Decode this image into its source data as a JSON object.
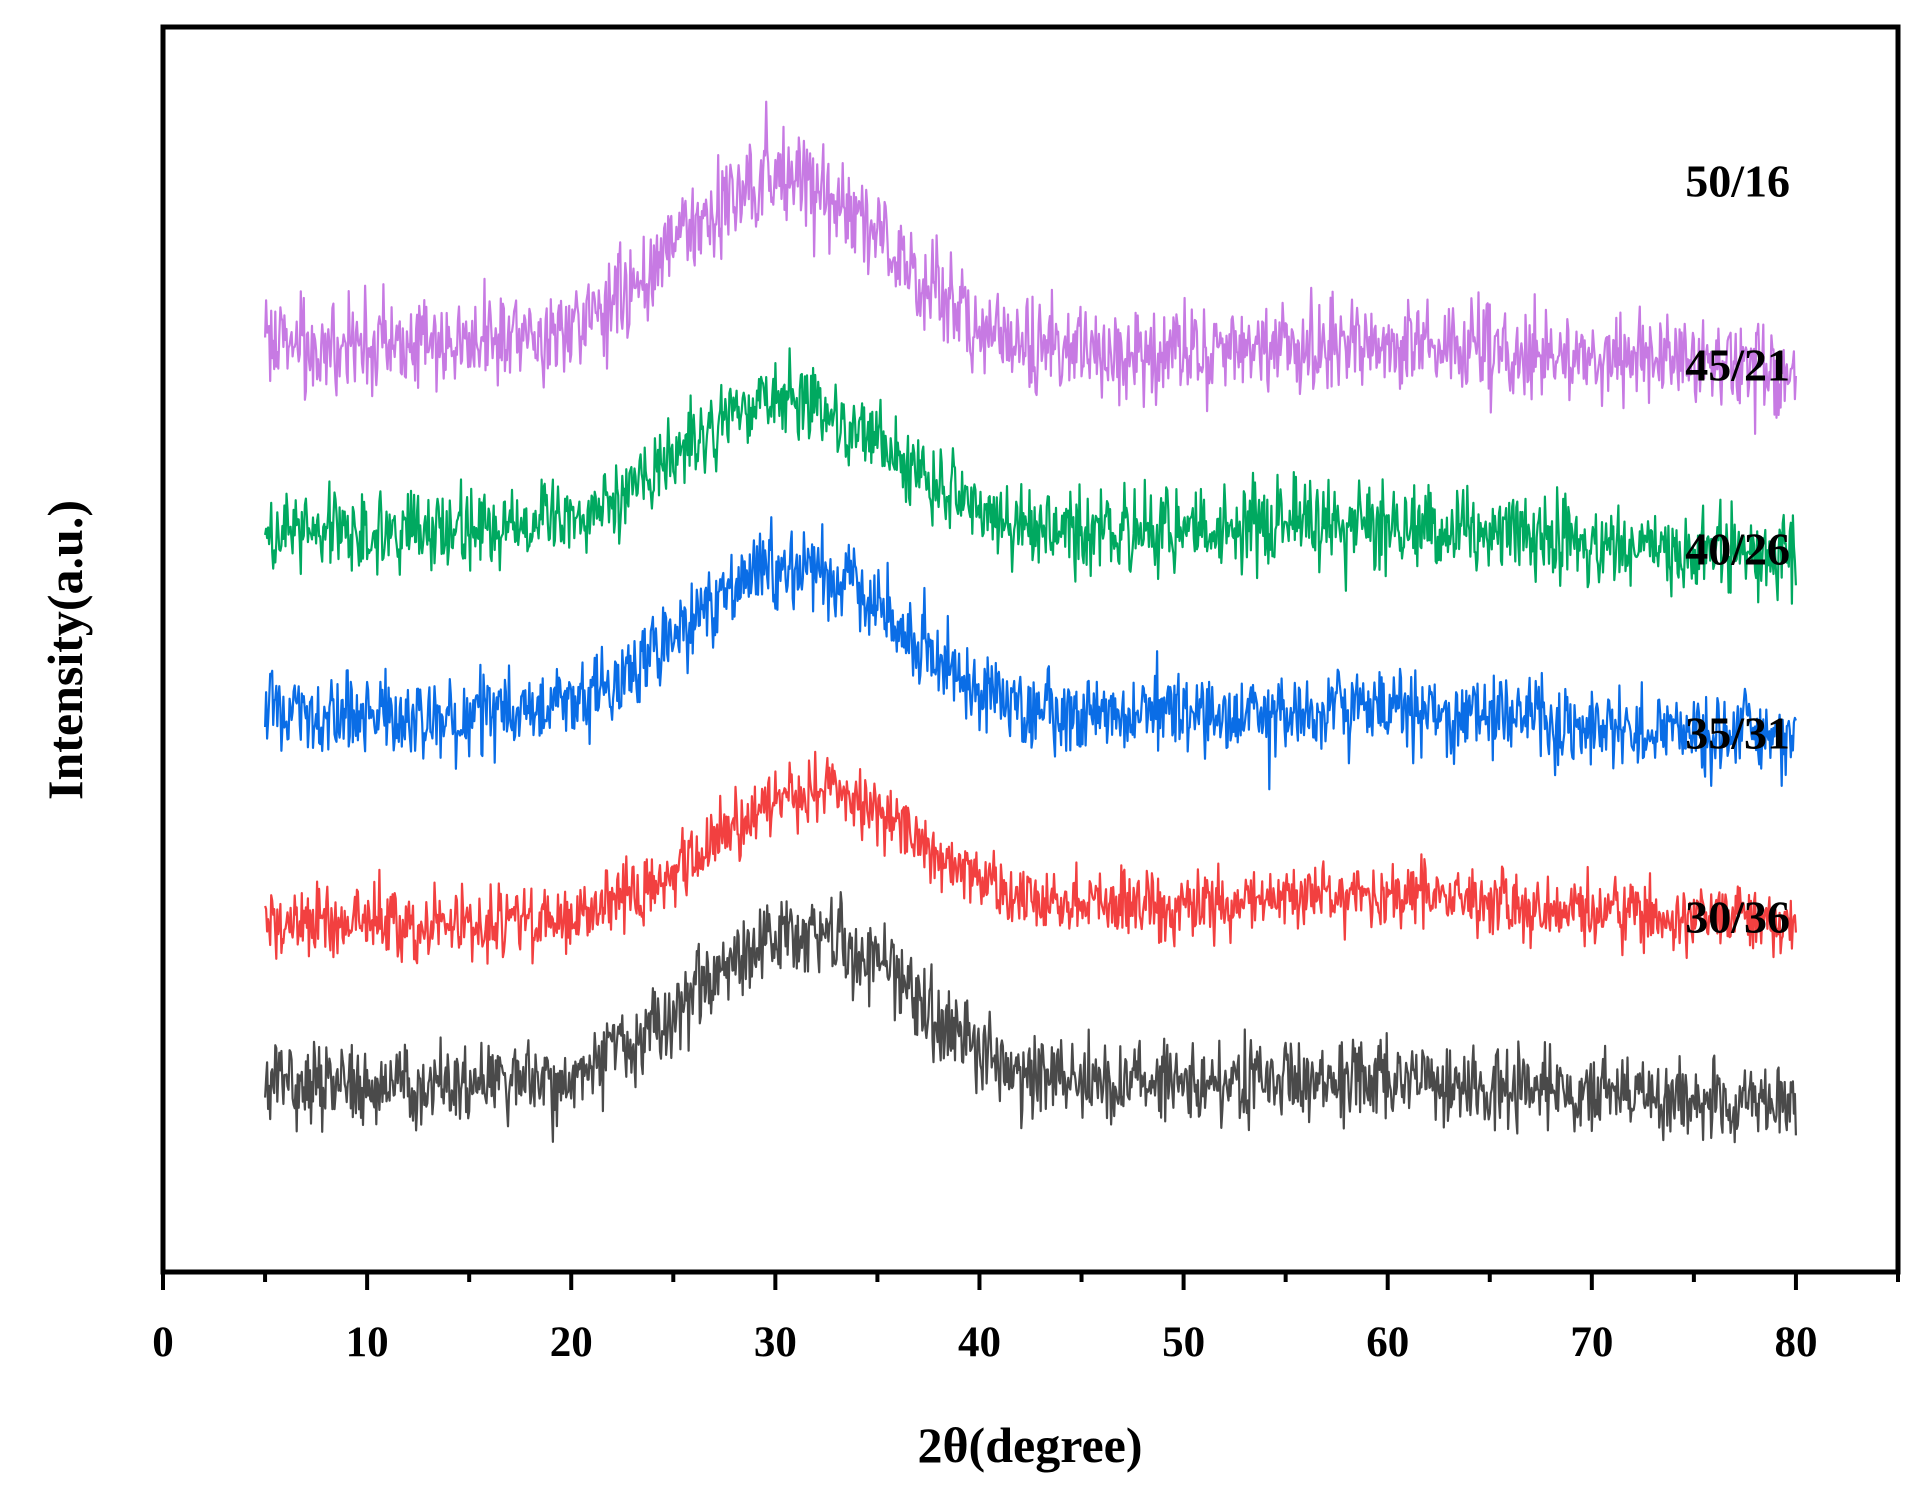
{
  "chart_data": {
    "type": "line",
    "title": "",
    "xlabel": "2θ(degree)",
    "ylabel": "Intensity(a.u.)",
    "xlim": [
      0,
      85
    ],
    "x_ticks": [
      "0",
      "10",
      "20",
      "30",
      "40",
      "50",
      "60",
      "70",
      "80"
    ],
    "x_range": [
      5,
      80
    ],
    "y_ticks_shown": false,
    "grid": false,
    "legend": "none",
    "series": [
      {
        "name": "50/16",
        "color": "#c77ae3",
        "offset": 4,
        "peak_center": 30.5,
        "peak_height": 0.95,
        "peak_width": 5.2,
        "baseline_start": 0.15,
        "baseline_end": 0.0,
        "hump_center": 62,
        "hump_height": 0.12,
        "hump_width": 9,
        "noise": 0.27,
        "seed": 11
      },
      {
        "name": "45/21",
        "color": "#00a960",
        "offset": 3,
        "peak_center": 30.5,
        "peak_height": 0.75,
        "peak_width": 5.2,
        "baseline_start": 0.15,
        "baseline_end": 0.0,
        "hump_center": 58,
        "hump_height": 0.12,
        "hump_width": 10,
        "noise": 0.24,
        "seed": 23
      },
      {
        "name": "40/26",
        "color": "#0a6de6",
        "offset": 2,
        "peak_center": 31.0,
        "peak_height": 0.85,
        "peak_width": 5.2,
        "baseline_start": 0.15,
        "baseline_end": 0.0,
        "hump_center": 58,
        "hump_height": 0.12,
        "hump_width": 10,
        "noise": 0.24,
        "seed": 37
      },
      {
        "name": "35/31",
        "color": "#f24040",
        "offset": 1,
        "peak_center": 32.0,
        "peak_height": 0.7,
        "peak_width": 5.2,
        "baseline_start": 0.0,
        "baseline_end": 0.0,
        "hump_center": 58,
        "hump_height": 0.15,
        "hump_width": 10,
        "noise": 0.2,
        "seed": 53
      },
      {
        "name": "30/36",
        "color": "#4a4a4a",
        "offset": 0,
        "peak_center": 31.5,
        "peak_height": 0.85,
        "peak_width": 5.2,
        "baseline_start": 0.15,
        "baseline_end": 0.0,
        "hump_center": 60,
        "hump_height": 0.12,
        "hump_width": 10,
        "noise": 0.24,
        "seed": 71
      }
    ]
  }
}
